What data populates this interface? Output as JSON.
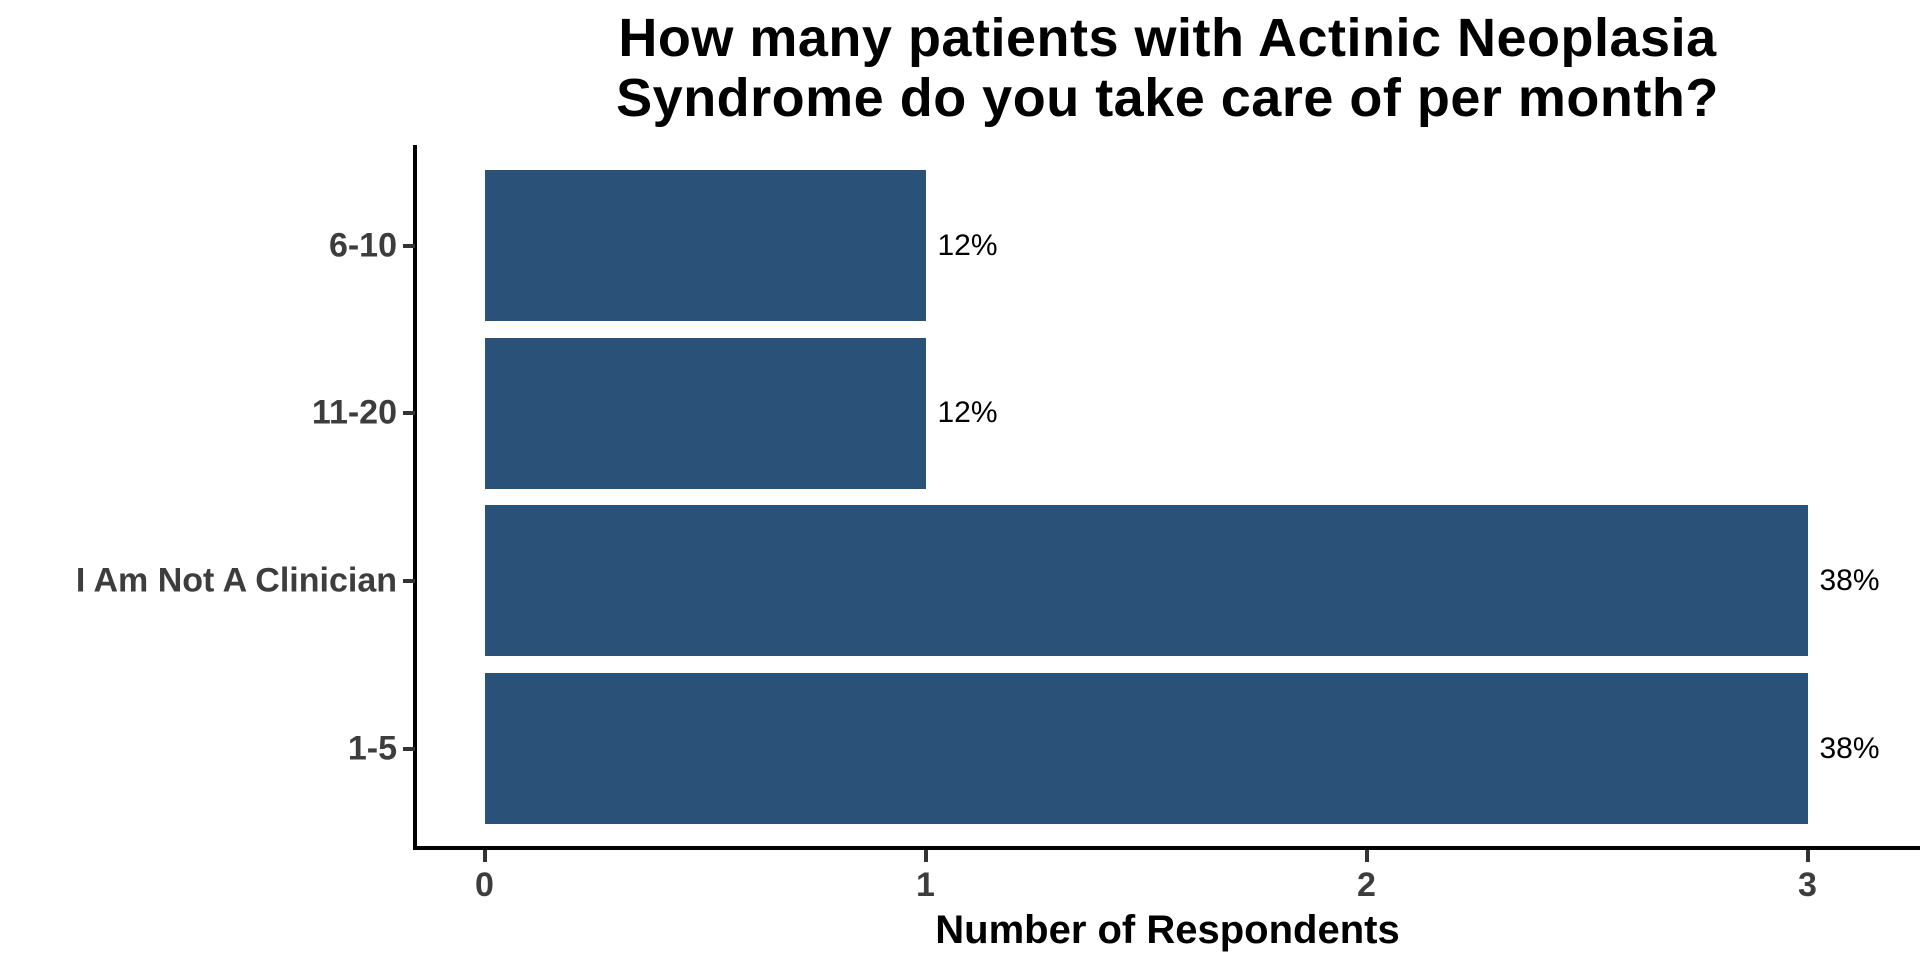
{
  "chart_data": {
    "type": "bar",
    "orientation": "horizontal",
    "title": "How many patients with Actinic Neoplasia Syndrome do you take care of per month?",
    "title_lines": [
      "How many patients with Actinic Neoplasia",
      "Syndrome do you take care of per month?"
    ],
    "categories": [
      "6-10",
      "11-20",
      "I Am Not A Clinician",
      "1-5"
    ],
    "values": [
      1,
      1,
      3,
      3
    ],
    "bar_labels": [
      "12%",
      "12%",
      "38%",
      "38%"
    ],
    "xlabel": "Number of Respondents",
    "ylabel": "",
    "x_ticks": [
      0,
      1,
      2,
      3
    ],
    "xlim": [
      0,
      3
    ],
    "grid": false,
    "legend": null,
    "bar_color": "#2A5178",
    "axis_text_color": "#3D3D3D",
    "axis_line_color": "#000000",
    "value_label_color": "#000000",
    "background": "#FFFFFF"
  }
}
